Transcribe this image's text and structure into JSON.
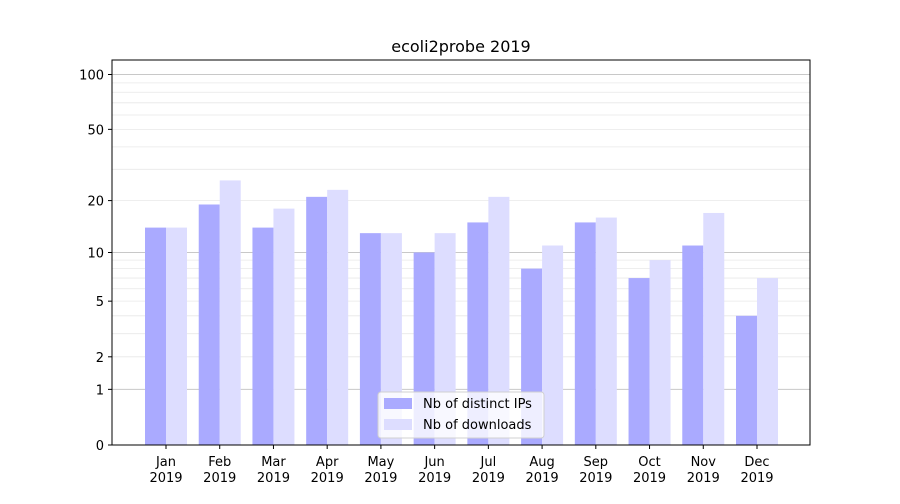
{
  "chart_data": {
    "type": "bar",
    "title": "ecoli2probe 2019",
    "xlabel": "",
    "ylabel": "",
    "yscale": "log(1+y)",
    "ylim": [
      0,
      120
    ],
    "yticks": [
      {
        "value": 0,
        "label": "0"
      },
      {
        "value": 1,
        "label": "1"
      },
      {
        "value": 2,
        "label": "2"
      },
      {
        "value": 5,
        "label": "5"
      },
      {
        "value": 10,
        "label": "10"
      },
      {
        "value": 20,
        "label": "20"
      },
      {
        "value": 50,
        "label": "50"
      },
      {
        "value": 100,
        "label": "100"
      }
    ],
    "categories": [
      [
        "Jan",
        "2019"
      ],
      [
        "Feb",
        "2019"
      ],
      [
        "Mar",
        "2019"
      ],
      [
        "Apr",
        "2019"
      ],
      [
        "May",
        "2019"
      ],
      [
        "Jun",
        "2019"
      ],
      [
        "Jul",
        "2019"
      ],
      [
        "Aug",
        "2019"
      ],
      [
        "Sep",
        "2019"
      ],
      [
        "Oct",
        "2019"
      ],
      [
        "Nov",
        "2019"
      ],
      [
        "Dec",
        "2019"
      ]
    ],
    "series": [
      {
        "name": "Nb of distinct IPs",
        "color": "#aaaaff",
        "values": [
          14,
          19,
          14,
          21,
          13,
          10,
          15,
          8,
          15,
          7,
          11,
          4
        ]
      },
      {
        "name": "Nb of downloads",
        "color": "#ddddff",
        "values": [
          14,
          26,
          18,
          23,
          13,
          13,
          21,
          11,
          16,
          9,
          17,
          7
        ]
      }
    ],
    "grid": true,
    "legend_position": "bottom-center"
  }
}
